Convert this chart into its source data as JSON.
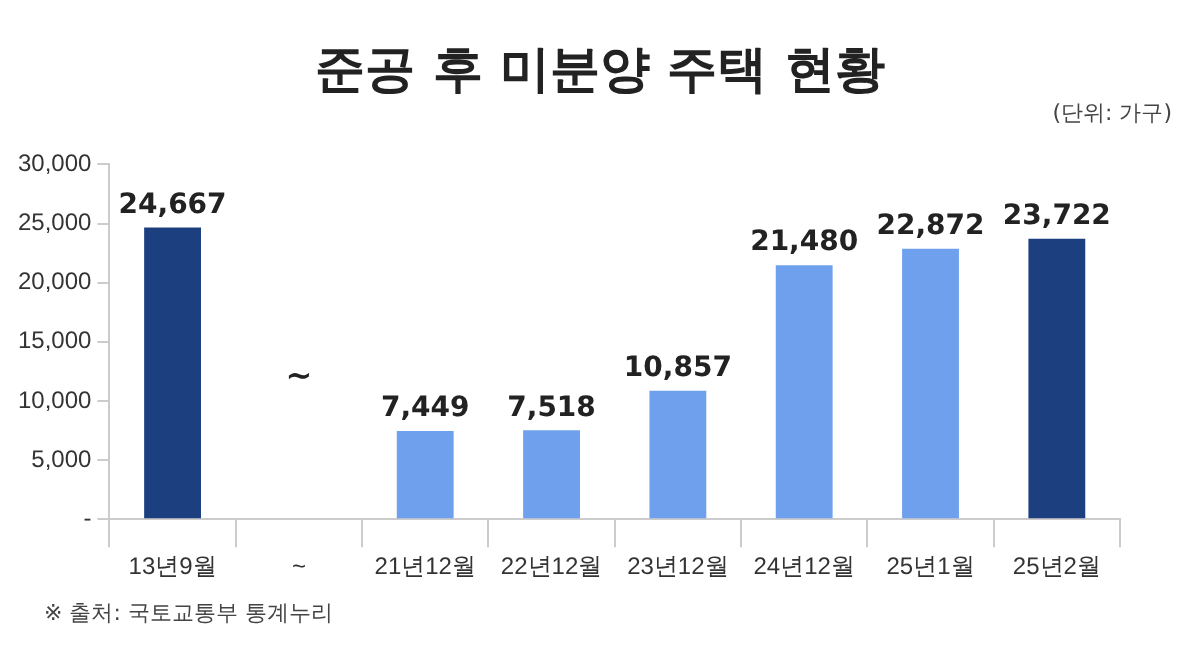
{
  "chart_data": {
    "type": "bar",
    "title": "준공 후 미분양 주택 현황",
    "categories": [
      "13년9월",
      "~",
      "21년12월",
      "22년12월",
      "23년12월",
      "24년12월",
      "25년1월",
      "25년2월"
    ],
    "values": [
      24667,
      null,
      7449,
      7518,
      10857,
      21480,
      22872,
      23722
    ],
    "colors": [
      "#1c3f80",
      "#6fa0ee",
      "#6fa0ee",
      "#6fa0ee",
      "#6fa0ee",
      "#6fa0ee",
      "#6fa0ee",
      "#1c3f80"
    ],
    "value_labels": [
      "24,667",
      null,
      "7,449",
      "7,518",
      "10,857",
      "21,480",
      "22,872",
      "23,722"
    ],
    "ylim": [
      0,
      30000
    ],
    "yticks": [
      {
        "value": 0,
        "label": "-"
      },
      {
        "value": 5000,
        "label": "5,000"
      },
      {
        "value": 10000,
        "label": "10,000"
      },
      {
        "value": 15000,
        "label": "15,000"
      },
      {
        "value": 20000,
        "label": "20,000"
      },
      {
        "value": 25000,
        "label": "25,000"
      },
      {
        "value": 30000,
        "label": "30,000"
      }
    ],
    "grid": false,
    "annotations": [
      "(단위: 가구)",
      "~",
      "※ 출처: 국토교통부 통계누리"
    ]
  }
}
